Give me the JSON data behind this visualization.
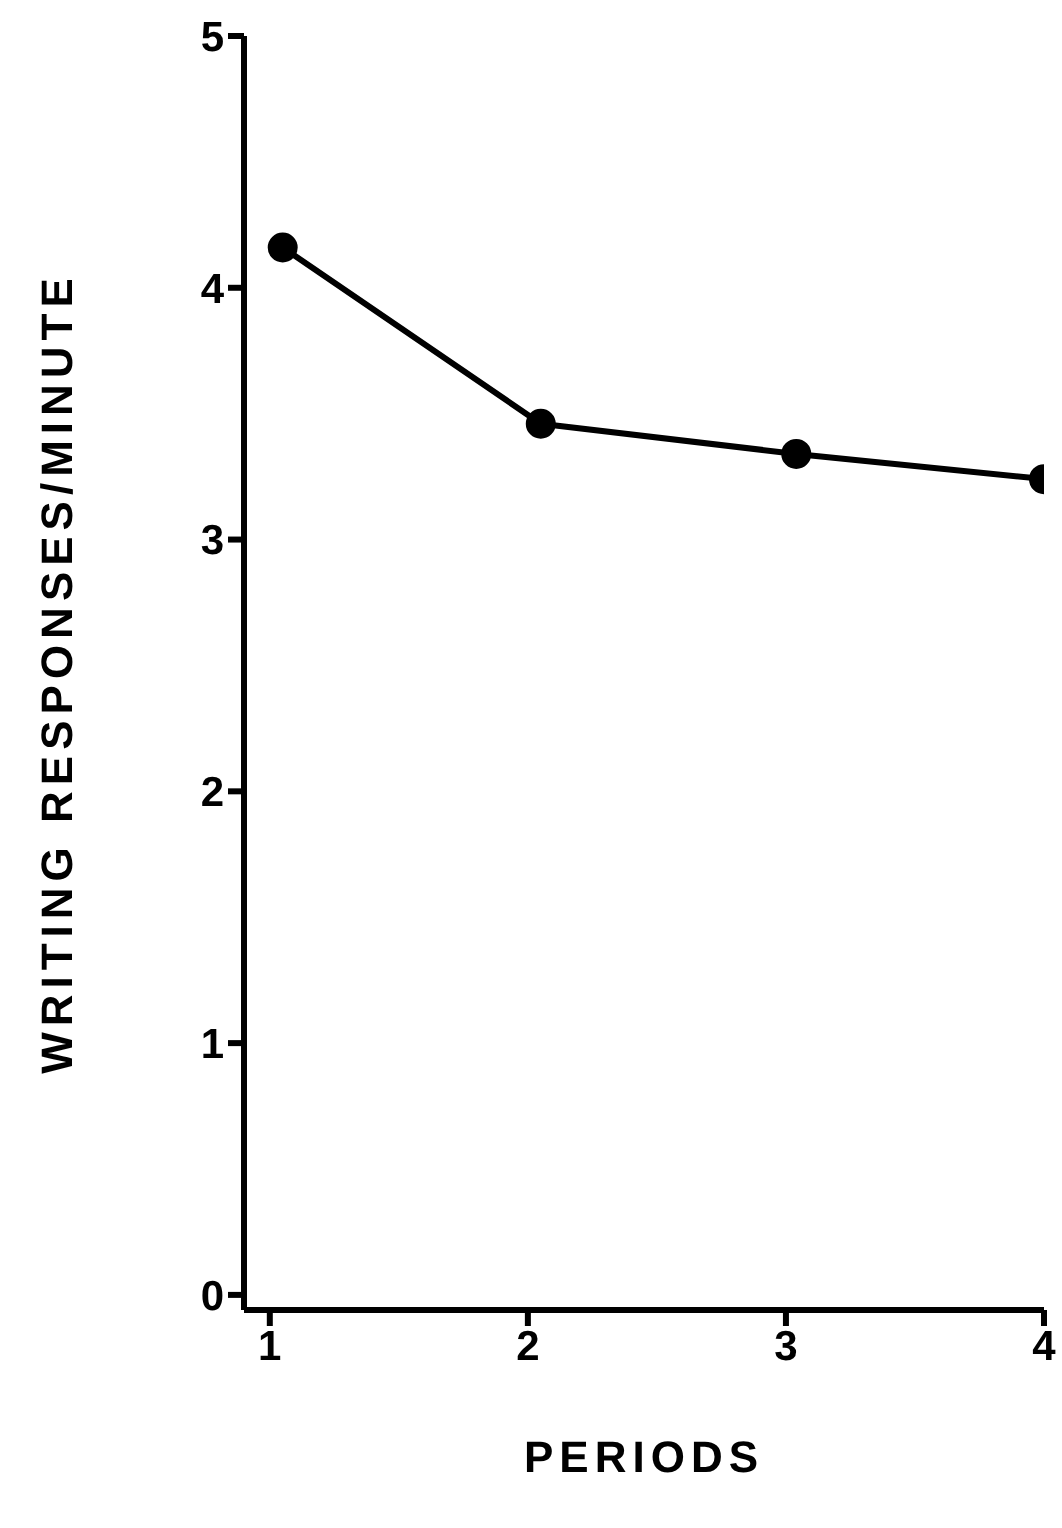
{
  "chart_data": {
    "type": "line",
    "xlabel": "PERIODS",
    "ylabel": "WRITING  RESPONSES/MINUTE",
    "x": [
      1.05,
      2.05,
      3.04,
      4
    ],
    "series": [
      {
        "color": "#000000",
        "values": [
          4.16,
          3.46,
          3.34,
          3.24
        ]
      }
    ],
    "xlim": [
      0.9,
      4
    ],
    "xticks": [
      1,
      2,
      3,
      4
    ],
    "ylim": [
      -0.06,
      5
    ],
    "yticks": [
      0,
      1,
      2,
      3,
      4,
      5
    ],
    "grid": false,
    "legend": false,
    "marker": "circle",
    "line_style": "solid"
  }
}
